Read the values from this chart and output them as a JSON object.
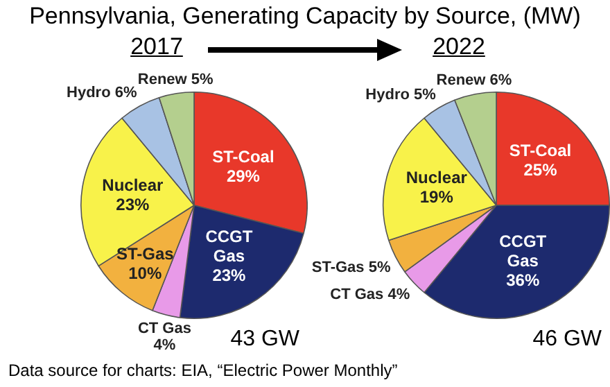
{
  "chart_data": [
    {
      "type": "pie",
      "title": "Pennsylvania, Generating Capacity by Source, (MW)",
      "subtitle": "2017",
      "categories": [
        "ST-Coal",
        "CCGT Gas",
        "CT Gas",
        "ST-Gas",
        "Nuclear",
        "Hydro",
        "Renew"
      ],
      "values": [
        29,
        23,
        4,
        10,
        23,
        6,
        5
      ],
      "value_labels": [
        "29%",
        "23%",
        "4%",
        "10%",
        "23%",
        "6%",
        "5%"
      ],
      "colors": [
        "#e8382a",
        "#1d2a6e",
        "#e89ae8",
        "#f2b13f",
        "#f8f24a",
        "#a8c2e4",
        "#b4cf8e"
      ],
      "legend": false,
      "annotations": [
        "43 GW",
        "Data source for charts: EIA, “Electric Power Monthly”"
      ]
    },
    {
      "type": "pie",
      "subtitle": "2022",
      "categories": [
        "ST-Coal",
        "CCGT Gas",
        "CT Gas",
        "ST-Gas",
        "Nuclear",
        "Hydro",
        "Renew"
      ],
      "values": [
        25,
        36,
        4,
        5,
        19,
        5,
        6
      ],
      "value_labels": [
        "25%",
        "36%",
        "4%",
        "5%",
        "19%",
        "5%",
        "6%"
      ],
      "colors": [
        "#e8382a",
        "#1d2a6e",
        "#e89ae8",
        "#f2b13f",
        "#f8f24a",
        "#a8c2e4",
        "#b4cf8e"
      ],
      "legend": false,
      "annotations": [
        "46 GW"
      ]
    }
  ]
}
